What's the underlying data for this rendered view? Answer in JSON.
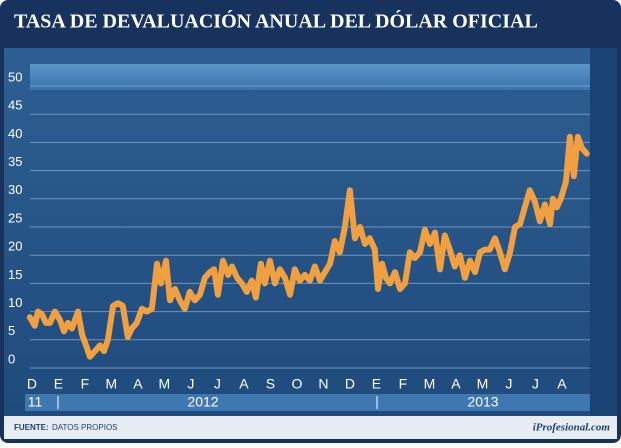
{
  "chart_data": {
    "type": "line",
    "title": "TASA DE DEVALUACIÓN ANUAL DEL DÓLAR OFICIAL",
    "source": "FUENTE:",
    "source_text": "DATOS PROPIOS",
    "brand": "iProfesional.com",
    "year_labels": [
      "11",
      "2012",
      "2013"
    ],
    "xlim": [
      -0.26,
      21.06
    ],
    "xticks": [
      {
        "value": 0,
        "label": "D"
      },
      {
        "value": 1,
        "label": "E"
      },
      {
        "value": 2,
        "label": "F"
      },
      {
        "value": 3,
        "label": "M"
      },
      {
        "value": 4,
        "label": "A"
      },
      {
        "value": 5,
        "label": "M"
      },
      {
        "value": 6,
        "label": "J"
      },
      {
        "value": 7,
        "label": "J"
      },
      {
        "value": 8,
        "label": "A"
      },
      {
        "value": 9,
        "label": "S"
      },
      {
        "value": 10,
        "label": "O"
      },
      {
        "value": 11,
        "label": "N"
      },
      {
        "value": 12,
        "label": "D"
      },
      {
        "value": 13,
        "label": "E"
      },
      {
        "value": 14,
        "label": "F"
      },
      {
        "value": 15,
        "label": "M"
      },
      {
        "value": 16,
        "label": "A"
      },
      {
        "value": 17,
        "label": "M"
      },
      {
        "value": 18,
        "label": "J"
      },
      {
        "value": 19,
        "label": "J"
      },
      {
        "value": 20,
        "label": "A"
      }
    ],
    "ylim": [
      0,
      50
    ],
    "yticks": [
      0,
      5,
      10,
      15,
      20,
      25,
      30,
      35,
      40,
      45,
      50
    ],
    "grid": true,
    "x": [
      -0.08,
      0.11,
      0.23,
      0.38,
      0.53,
      0.68,
      0.87,
      1.06,
      1.21,
      1.36,
      1.51,
      1.74,
      1.89,
      2.04,
      2.19,
      2.38,
      2.57,
      2.72,
      2.87,
      3.06,
      3.25,
      3.43,
      3.62,
      3.77,
      3.96,
      4.15,
      4.34,
      4.53,
      4.72,
      4.87,
      5.06,
      5.21,
      5.4,
      5.58,
      5.77,
      5.96,
      6.15,
      6.34,
      6.53,
      6.72,
      6.87,
      7.02,
      7.21,
      7.4,
      7.55,
      7.74,
      7.92,
      8.11,
      8.3,
      8.45,
      8.64,
      8.79,
      8.98,
      9.17,
      9.36,
      9.55,
      9.74,
      9.92,
      10.11,
      10.3,
      10.49,
      10.68,
      10.87,
      11.06,
      11.25,
      11.43,
      11.62,
      11.81,
      12.0,
      12.19,
      12.38,
      12.57,
      12.75,
      12.94,
      13.06,
      13.21,
      13.36,
      13.51,
      13.7,
      13.89,
      14.08,
      14.26,
      14.45,
      14.64,
      14.83,
      15.02,
      15.21,
      15.4,
      15.58,
      15.77,
      15.96,
      16.15,
      16.34,
      16.53,
      16.72,
      16.91,
      17.09,
      17.28,
      17.47,
      17.66,
      17.85,
      18.04,
      18.23,
      18.42,
      18.6,
      18.79,
      18.98,
      19.17,
      19.36,
      19.55,
      19.66,
      19.81,
      19.96,
      20.15,
      20.3,
      20.45,
      20.6,
      20.75,
      20.94
    ],
    "series": [
      {
        "color": "#f0a040",
        "values": [
          9,
          7.5,
          10,
          9.5,
          8,
          8,
          10,
          8.5,
          6.5,
          8,
          7,
          10,
          6,
          4,
          2,
          3,
          4,
          3,
          5,
          11,
          11.5,
          11,
          5.5,
          7,
          8,
          10.5,
          10,
          10.5,
          18.5,
          15,
          19,
          12,
          14,
          12,
          10.5,
          13.5,
          12,
          13,
          16,
          17,
          17.5,
          13,
          19,
          16.5,
          18,
          16,
          15,
          13.5,
          15.5,
          12.5,
          18.5,
          15,
          19,
          15,
          17.5,
          16,
          13,
          17.5,
          15.5,
          16.5,
          15.5,
          18,
          15.5,
          17,
          18.5,
          22.5,
          20.5,
          25,
          31.5,
          23,
          25,
          22,
          23,
          21,
          14,
          18.5,
          16,
          15,
          17,
          14,
          15,
          20.5,
          19.5,
          20.5,
          24.5,
          22,
          24,
          17.5,
          23.5,
          21,
          18,
          20,
          16,
          19,
          17,
          20.5,
          21,
          21,
          23,
          20.5,
          17.5,
          20.5,
          25,
          25.5,
          28.5,
          31.5,
          29.5,
          26,
          29,
          25.5,
          30,
          28.5,
          30,
          33,
          41,
          34,
          41,
          39,
          38
        ]
      }
    ]
  }
}
